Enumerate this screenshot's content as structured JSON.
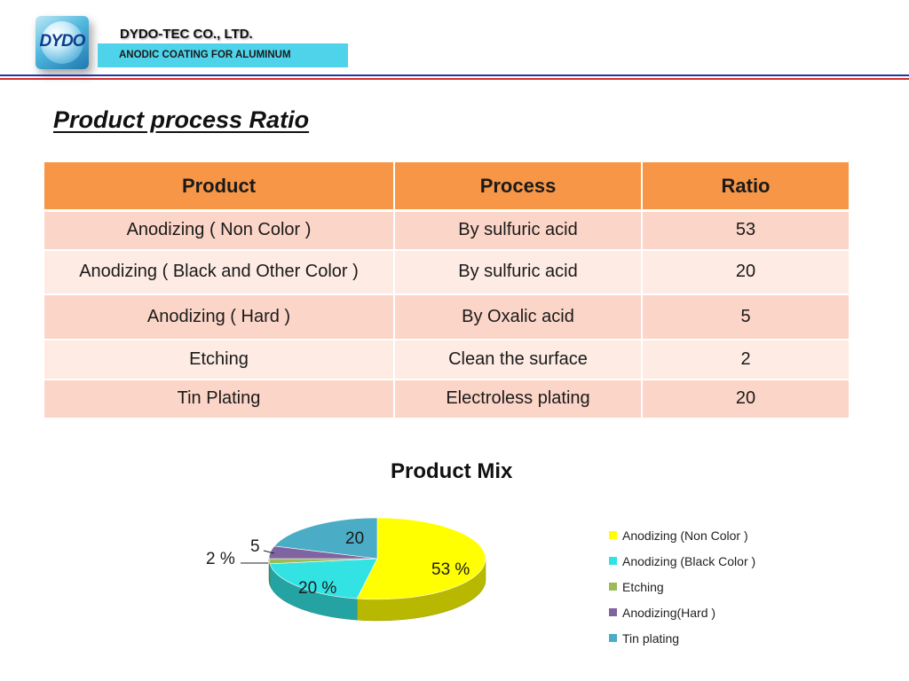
{
  "header": {
    "logo_text": "DYDO",
    "company": "DYDO-TEC  CO., LTD.",
    "tagline": "ANODIC  COATING  FOR  ALUMINUM"
  },
  "title": "Product  process  Ratio",
  "table": {
    "columns": [
      "Product",
      "Process",
      "Ratio"
    ],
    "rows": [
      [
        "Anodizing ( Non Color )",
        "By sulfuric  acid",
        "53"
      ],
      [
        "Anodizing ( Black and  Other Color )",
        "By sulfuric  acid",
        "20"
      ],
      [
        "Anodizing ( Hard )",
        "By  Oxalic  acid",
        "5"
      ],
      [
        "Etching",
        "Clean the surface",
        "2"
      ],
      [
        "Tin Plating",
        "Electroless plating",
        "20"
      ]
    ]
  },
  "colors": {
    "header_accent": "#4fd3ea",
    "table_header": "#f79646",
    "row_odd": "#fbd5c7",
    "row_even": "#fdebe4"
  },
  "chart_data": {
    "type": "pie",
    "title": "Product   Mix",
    "categories": [
      "Anodizing (Non Color )",
      "Anodizing (Black Color )",
      "Etching",
      "Anodizing(Hard )",
      "Tin plating"
    ],
    "values": [
      53,
      20,
      2,
      5,
      20
    ],
    "colors": [
      "#ffff00",
      "#33e3e3",
      "#9bbb59",
      "#8064a2",
      "#4bacc6"
    ],
    "data_labels": [
      "53 %",
      "20 %",
      "2 %",
      "5",
      "20"
    ],
    "legend_position": "right",
    "style": "3d"
  }
}
